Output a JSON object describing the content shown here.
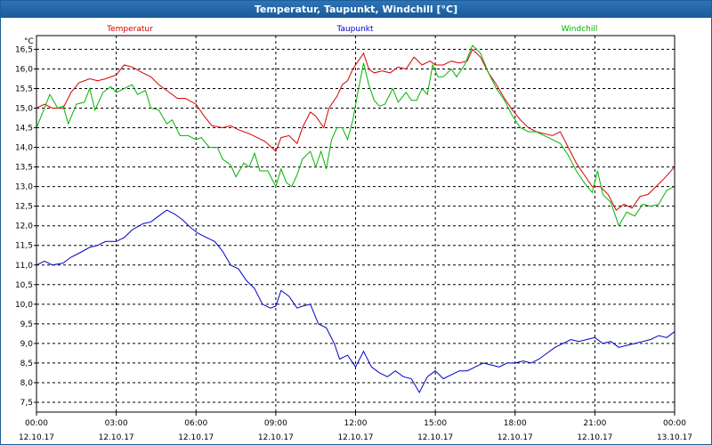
{
  "window": {
    "title": "Temperatur, Taupunkt, Windchill [°C]"
  },
  "chart_data": {
    "type": "line",
    "title": "Temperatur, Taupunkt, Windchill [°C]",
    "ylabel": "°C",
    "ylim": [
      7.25,
      16.85
    ],
    "yticks": [
      7.5,
      8.0,
      8.5,
      9.0,
      9.5,
      10.0,
      10.5,
      11.0,
      11.5,
      12.0,
      12.5,
      13.0,
      13.5,
      14.0,
      14.5,
      15.0,
      15.5,
      16.0,
      16.5
    ],
    "ytick_labels": [
      "7,5",
      "8,0",
      "8,5",
      "9,0",
      "9,5",
      "10,0",
      "10,5",
      "11,0",
      "11,5",
      "12,0",
      "12,5",
      "13,0",
      "13,5",
      "14,0",
      "14,5",
      "15,0",
      "15,5",
      "16,0",
      "16,5"
    ],
    "xlim_hours": [
      0,
      24
    ],
    "xticks": [
      {
        "h": 0,
        "time": "00:00",
        "date": "12.10.17"
      },
      {
        "h": 3,
        "time": "03:00",
        "date": "12.10.17"
      },
      {
        "h": 6,
        "time": "06:00",
        "date": "12.10.17"
      },
      {
        "h": 9,
        "time": "09:00",
        "date": "12.10.17"
      },
      {
        "h": 12,
        "time": "12:00",
        "date": "12.10.17"
      },
      {
        "h": 15,
        "time": "15:00",
        "date": "12.10.17"
      },
      {
        "h": 18,
        "time": "18:00",
        "date": "12.10.17"
      },
      {
        "h": 21,
        "time": "21:00",
        "date": "12.10.17"
      },
      {
        "h": 24,
        "time": "00:00",
        "date": "13.10.17"
      }
    ],
    "grid": true,
    "series": [
      {
        "name": "Temperatur",
        "color": "#d40000",
        "legend_pos": "left",
        "points": [
          [
            0,
            15.0
          ],
          [
            0.3,
            15.1
          ],
          [
            0.6,
            15.0
          ],
          [
            1.0,
            15.0
          ],
          [
            1.3,
            15.4
          ],
          [
            1.6,
            15.65
          ],
          [
            2.0,
            15.75
          ],
          [
            2.3,
            15.7
          ],
          [
            2.6,
            15.75
          ],
          [
            3.0,
            15.85
          ],
          [
            3.3,
            16.1
          ],
          [
            3.6,
            16.05
          ],
          [
            4.0,
            15.9
          ],
          [
            4.3,
            15.8
          ],
          [
            4.6,
            15.6
          ],
          [
            5.0,
            15.4
          ],
          [
            5.3,
            15.25
          ],
          [
            5.6,
            15.25
          ],
          [
            6.0,
            15.1
          ],
          [
            6.3,
            14.8
          ],
          [
            6.6,
            14.55
          ],
          [
            7.0,
            14.5
          ],
          [
            7.3,
            14.55
          ],
          [
            7.6,
            14.45
          ],
          [
            8.0,
            14.35
          ],
          [
            8.3,
            14.25
          ],
          [
            8.6,
            14.15
          ],
          [
            9.0,
            13.9
          ],
          [
            9.2,
            14.25
          ],
          [
            9.5,
            14.3
          ],
          [
            9.8,
            14.1
          ],
          [
            10.0,
            14.5
          ],
          [
            10.3,
            14.9
          ],
          [
            10.5,
            14.8
          ],
          [
            10.8,
            14.5
          ],
          [
            11.0,
            15.0
          ],
          [
            11.3,
            15.3
          ],
          [
            11.5,
            15.6
          ],
          [
            11.7,
            15.7
          ],
          [
            11.9,
            16.0
          ],
          [
            12.1,
            16.2
          ],
          [
            12.3,
            16.4
          ],
          [
            12.5,
            16.0
          ],
          [
            12.7,
            15.9
          ],
          [
            13.0,
            15.95
          ],
          [
            13.3,
            15.9
          ],
          [
            13.6,
            16.05
          ],
          [
            13.9,
            16.0
          ],
          [
            14.2,
            16.3
          ],
          [
            14.5,
            16.1
          ],
          [
            14.8,
            16.2
          ],
          [
            15.0,
            16.1
          ],
          [
            15.3,
            16.1
          ],
          [
            15.6,
            16.2
          ],
          [
            15.9,
            16.15
          ],
          [
            16.2,
            16.2
          ],
          [
            16.4,
            16.5
          ],
          [
            16.7,
            16.3
          ],
          [
            17.0,
            15.9
          ],
          [
            17.3,
            15.6
          ],
          [
            17.6,
            15.25
          ],
          [
            17.9,
            14.95
          ],
          [
            18.2,
            14.7
          ],
          [
            18.5,
            14.5
          ],
          [
            18.8,
            14.4
          ],
          [
            19.1,
            14.35
          ],
          [
            19.4,
            14.3
          ],
          [
            19.7,
            14.4
          ],
          [
            20.0,
            14.0
          ],
          [
            20.3,
            13.6
          ],
          [
            20.6,
            13.3
          ],
          [
            20.9,
            13.0
          ],
          [
            21.2,
            13.0
          ],
          [
            21.5,
            12.8
          ],
          [
            21.8,
            12.4
          ],
          [
            22.1,
            12.55
          ],
          [
            22.4,
            12.45
          ],
          [
            22.7,
            12.75
          ],
          [
            23.0,
            12.8
          ],
          [
            23.3,
            13.0
          ],
          [
            23.6,
            13.2
          ],
          [
            24.0,
            13.5
          ]
        ]
      },
      {
        "name": "Taupunkt",
        "color": "#0000c8",
        "legend_pos": "center",
        "points": [
          [
            0,
            11.0
          ],
          [
            0.3,
            11.1
          ],
          [
            0.6,
            11.0
          ],
          [
            1.0,
            11.05
          ],
          [
            1.3,
            11.2
          ],
          [
            1.6,
            11.3
          ],
          [
            2.0,
            11.45
          ],
          [
            2.3,
            11.5
          ],
          [
            2.6,
            11.6
          ],
          [
            3.0,
            11.6
          ],
          [
            3.3,
            11.7
          ],
          [
            3.6,
            11.9
          ],
          [
            4.0,
            12.05
          ],
          [
            4.3,
            12.1
          ],
          [
            4.6,
            12.25
          ],
          [
            4.9,
            12.4
          ],
          [
            5.2,
            12.3
          ],
          [
            5.5,
            12.15
          ],
          [
            5.8,
            11.95
          ],
          [
            6.1,
            11.8
          ],
          [
            6.4,
            11.7
          ],
          [
            6.7,
            11.6
          ],
          [
            7.0,
            11.35
          ],
          [
            7.3,
            11.0
          ],
          [
            7.6,
            10.9
          ],
          [
            7.9,
            10.6
          ],
          [
            8.2,
            10.4
          ],
          [
            8.5,
            10.0
          ],
          [
            8.8,
            9.9
          ],
          [
            9.0,
            9.95
          ],
          [
            9.2,
            10.35
          ],
          [
            9.5,
            10.2
          ],
          [
            9.8,
            9.9
          ],
          [
            10.0,
            9.95
          ],
          [
            10.3,
            10.0
          ],
          [
            10.6,
            9.5
          ],
          [
            10.9,
            9.4
          ],
          [
            11.2,
            9.0
          ],
          [
            11.4,
            8.6
          ],
          [
            11.7,
            8.7
          ],
          [
            12.0,
            8.4
          ],
          [
            12.3,
            8.8
          ],
          [
            12.6,
            8.4
          ],
          [
            12.9,
            8.25
          ],
          [
            13.2,
            8.15
          ],
          [
            13.5,
            8.3
          ],
          [
            13.8,
            8.15
          ],
          [
            14.1,
            8.1
          ],
          [
            14.4,
            7.75
          ],
          [
            14.7,
            8.15
          ],
          [
            15.0,
            8.3
          ],
          [
            15.3,
            8.1
          ],
          [
            15.6,
            8.2
          ],
          [
            15.9,
            8.3
          ],
          [
            16.2,
            8.3
          ],
          [
            16.5,
            8.4
          ],
          [
            16.8,
            8.5
          ],
          [
            17.1,
            8.45
          ],
          [
            17.4,
            8.4
          ],
          [
            17.7,
            8.5
          ],
          [
            18.0,
            8.5
          ],
          [
            18.3,
            8.55
          ],
          [
            18.6,
            8.5
          ],
          [
            18.9,
            8.6
          ],
          [
            19.2,
            8.75
          ],
          [
            19.5,
            8.9
          ],
          [
            19.8,
            9.0
          ],
          [
            20.1,
            9.1
          ],
          [
            20.4,
            9.05
          ],
          [
            20.7,
            9.1
          ],
          [
            21.0,
            9.15
          ],
          [
            21.3,
            9.0
          ],
          [
            21.6,
            9.05
          ],
          [
            21.9,
            8.9
          ],
          [
            22.2,
            8.95
          ],
          [
            22.5,
            9.0
          ],
          [
            22.8,
            9.05
          ],
          [
            23.1,
            9.1
          ],
          [
            23.4,
            9.2
          ],
          [
            23.7,
            9.15
          ],
          [
            24.0,
            9.3
          ]
        ]
      },
      {
        "name": "Windchill",
        "color": "#00b400",
        "legend_pos": "right",
        "points": [
          [
            0,
            14.5
          ],
          [
            0.3,
            15.0
          ],
          [
            0.5,
            15.35
          ],
          [
            0.8,
            15.0
          ],
          [
            1.0,
            15.05
          ],
          [
            1.2,
            14.6
          ],
          [
            1.5,
            15.1
          ],
          [
            1.8,
            15.15
          ],
          [
            2.0,
            15.5
          ],
          [
            2.2,
            14.95
          ],
          [
            2.5,
            15.4
          ],
          [
            2.8,
            15.55
          ],
          [
            3.0,
            15.4
          ],
          [
            3.3,
            15.5
          ],
          [
            3.6,
            15.6
          ],
          [
            3.8,
            15.35
          ],
          [
            4.1,
            15.45
          ],
          [
            4.3,
            15.0
          ],
          [
            4.6,
            14.95
          ],
          [
            4.9,
            14.6
          ],
          [
            5.1,
            14.7
          ],
          [
            5.4,
            14.3
          ],
          [
            5.7,
            14.3
          ],
          [
            6.0,
            14.2
          ],
          [
            6.2,
            14.25
          ],
          [
            6.5,
            14.0
          ],
          [
            6.8,
            14.0
          ],
          [
            7.0,
            13.7
          ],
          [
            7.3,
            13.55
          ],
          [
            7.5,
            13.25
          ],
          [
            7.8,
            13.6
          ],
          [
            8.0,
            13.5
          ],
          [
            8.2,
            13.85
          ],
          [
            8.4,
            13.4
          ],
          [
            8.7,
            13.4
          ],
          [
            9.0,
            13.0
          ],
          [
            9.2,
            13.45
          ],
          [
            9.4,
            13.1
          ],
          [
            9.6,
            13.0
          ],
          [
            9.8,
            13.3
          ],
          [
            10.0,
            13.7
          ],
          [
            10.3,
            13.9
          ],
          [
            10.5,
            13.5
          ],
          [
            10.7,
            13.9
          ],
          [
            10.9,
            13.45
          ],
          [
            11.1,
            14.2
          ],
          [
            11.3,
            14.5
          ],
          [
            11.5,
            14.5
          ],
          [
            11.7,
            14.2
          ],
          [
            11.9,
            14.7
          ],
          [
            12.1,
            15.45
          ],
          [
            12.3,
            16.15
          ],
          [
            12.5,
            15.6
          ],
          [
            12.7,
            15.2
          ],
          [
            12.9,
            15.05
          ],
          [
            13.1,
            15.1
          ],
          [
            13.4,
            15.5
          ],
          [
            13.6,
            15.15
          ],
          [
            13.9,
            15.4
          ],
          [
            14.1,
            15.2
          ],
          [
            14.3,
            15.2
          ],
          [
            14.5,
            15.5
          ],
          [
            14.7,
            15.35
          ],
          [
            14.9,
            16.1
          ],
          [
            15.1,
            15.8
          ],
          [
            15.3,
            15.8
          ],
          [
            15.6,
            16.0
          ],
          [
            15.8,
            15.8
          ],
          [
            16.1,
            16.1
          ],
          [
            16.4,
            16.6
          ],
          [
            16.7,
            16.4
          ],
          [
            17.0,
            15.9
          ],
          [
            17.3,
            15.5
          ],
          [
            17.6,
            15.2
          ],
          [
            17.9,
            14.8
          ],
          [
            18.2,
            14.5
          ],
          [
            18.5,
            14.4
          ],
          [
            18.8,
            14.4
          ],
          [
            19.1,
            14.3
          ],
          [
            19.4,
            14.2
          ],
          [
            19.7,
            14.1
          ],
          [
            20.0,
            13.8
          ],
          [
            20.3,
            13.4
          ],
          [
            20.6,
            13.1
          ],
          [
            20.9,
            12.85
          ],
          [
            21.1,
            13.4
          ],
          [
            21.3,
            12.8
          ],
          [
            21.6,
            12.6
          ],
          [
            21.9,
            12.0
          ],
          [
            22.2,
            12.35
          ],
          [
            22.5,
            12.25
          ],
          [
            22.8,
            12.55
          ],
          [
            23.1,
            12.5
          ],
          [
            23.4,
            12.55
          ],
          [
            23.7,
            12.9
          ],
          [
            24.0,
            13.0
          ]
        ]
      }
    ]
  }
}
